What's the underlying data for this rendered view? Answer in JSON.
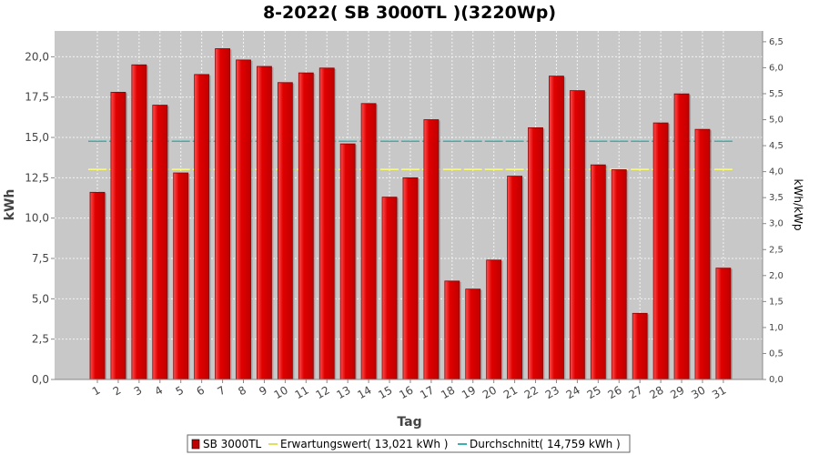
{
  "chart_data": {
    "type": "bar",
    "title": "8-2022( SB 3000TL )(3220Wp)",
    "xlabel": "Tag",
    "ylabel": "kWh",
    "ylabel_right": "kWh/kWp",
    "ylim": [
      0,
      21.6
    ],
    "ylim_right": [
      0,
      6.708
    ],
    "yticks": [
      "0,0",
      "2,5",
      "5,0",
      "7,5",
      "10,0",
      "12,5",
      "15,0",
      "17,5",
      "20,0"
    ],
    "yticks_right": [
      "0,0",
      "0,5",
      "1,0",
      "1,5",
      "2,0",
      "2,5",
      "3,0",
      "3,5",
      "4,0",
      "4,5",
      "5,0",
      "5,5",
      "6,0",
      "6,5"
    ],
    "grid": true,
    "legend_position": "bottom",
    "colors": {
      "plot_background": "#c8c8c8",
      "bar_fill": "#e00000",
      "bar_highlight": "#ff4040",
      "bar_edge": "#8b0000",
      "expected_line": "#ffff66",
      "average_line": "#3ab0b0"
    },
    "categories": [
      "1",
      "2",
      "3",
      "4",
      "5",
      "6",
      "7",
      "8",
      "9",
      "10",
      "11",
      "12",
      "13",
      "14",
      "15",
      "16",
      "17",
      "18",
      "19",
      "20",
      "21",
      "22",
      "23",
      "24",
      "25",
      "26",
      "27",
      "28",
      "29",
      "30",
      "31"
    ],
    "series": [
      {
        "name": "SB 3000TL",
        "values": [
          11.6,
          17.8,
          19.5,
          17.0,
          12.8,
          18.9,
          20.5,
          19.8,
          19.4,
          18.4,
          19.0,
          19.3,
          14.6,
          17.1,
          11.3,
          12.5,
          16.1,
          6.1,
          5.6,
          7.4,
          12.6,
          15.6,
          18.8,
          17.9,
          13.3,
          13.0,
          4.1,
          15.9,
          17.7,
          15.5,
          6.9
        ]
      }
    ],
    "reference_lines": [
      {
        "legend": "Erwartungswert( 13,021 kWh )",
        "value": 13.021
      },
      {
        "legend": "Durchschnitt( 14,759 kWh )",
        "value": 14.759
      }
    ]
  }
}
